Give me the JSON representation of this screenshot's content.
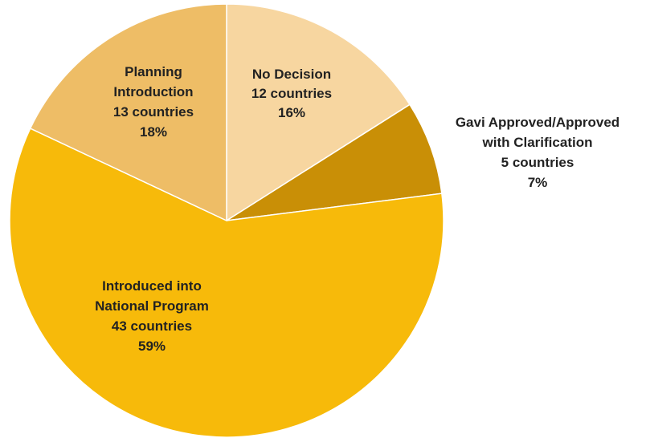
{
  "chart_data": {
    "type": "pie",
    "title": "",
    "slices": [
      {
        "key": "no-decision",
        "category": "No Decision",
        "countLabel": "12 countries",
        "count": 12,
        "percentLabel": "16%",
        "value": 16,
        "color": "#F7D6A0"
      },
      {
        "key": "gavi-approved",
        "category": "Gavi Approved/Approved with Clarification",
        "countLabel": "5 countries",
        "count": 5,
        "percentLabel": "7%",
        "value": 7,
        "color": "#C98F06"
      },
      {
        "key": "introduced",
        "category": "Introduced into National Program",
        "countLabel": "43 countries",
        "count": 43,
        "percentLabel": "59%",
        "value": 59,
        "color": "#F7BA0A"
      },
      {
        "key": "planning",
        "category": "Planning Introduction",
        "countLabel": "13 countries",
        "count": 13,
        "percentLabel": "18%",
        "value": 18,
        "color": "#EEBD66"
      }
    ],
    "start_angle_deg": 0,
    "direction": "clockwise",
    "legend": "none",
    "labels": "data labels with category, count and percent"
  }
}
